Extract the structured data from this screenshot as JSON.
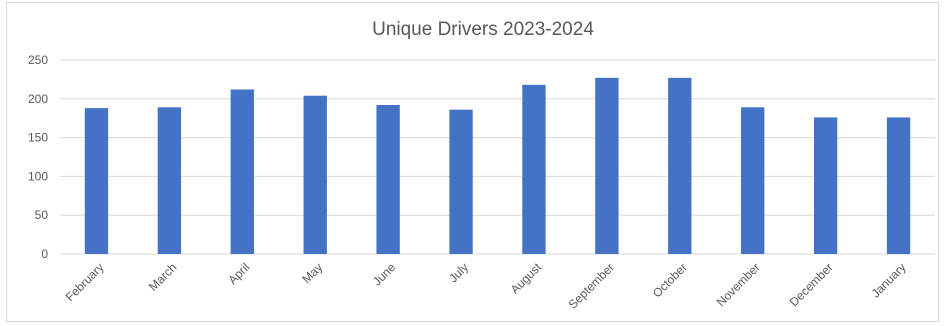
{
  "chart_data": {
    "type": "bar",
    "title": "Unique Drivers 2023-2024",
    "xlabel": "",
    "ylabel": "",
    "categories": [
      "February",
      "March",
      "April",
      "May",
      "June",
      "July",
      "August",
      "September",
      "October",
      "November",
      "December",
      "January"
    ],
    "values": [
      188,
      189,
      212,
      204,
      192,
      186,
      218,
      227,
      227,
      189,
      176,
      176
    ],
    "ylim": [
      0,
      250
    ],
    "yticks": [
      0,
      50,
      100,
      150,
      200,
      250
    ],
    "grid": true,
    "legend": "none",
    "bar_color": "#4472C4",
    "grid_color": "#d9d9d9"
  }
}
